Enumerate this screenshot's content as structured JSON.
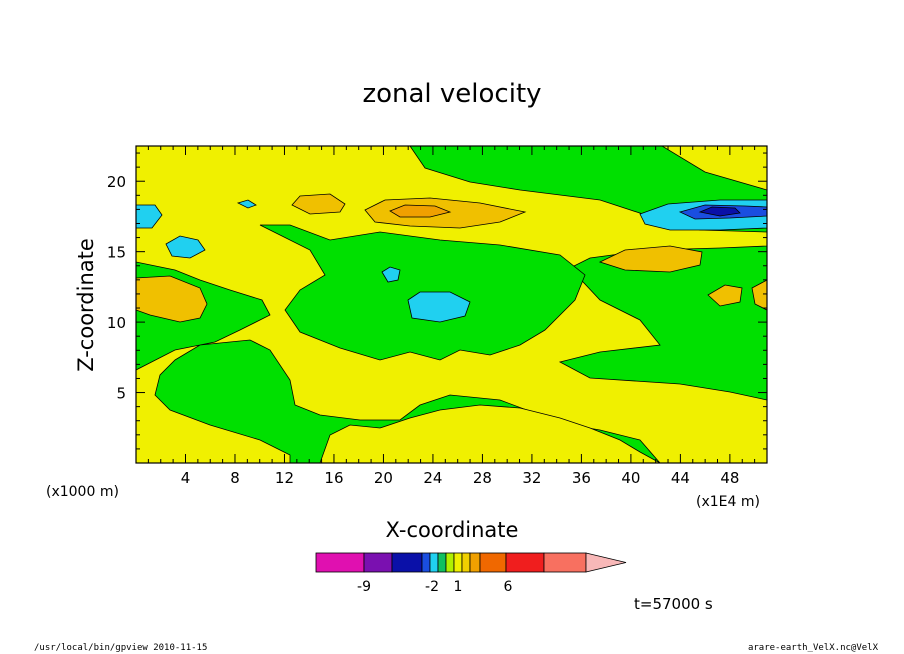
{
  "chart_data": {
    "type": "heatmap",
    "title": "zonal velocity",
    "xlabel": "X-coordinate",
    "ylabel": "Z-coordinate",
    "x_ticks": [
      "4",
      "8",
      "12",
      "16",
      "20",
      "24",
      "28",
      "32",
      "36",
      "40",
      "44",
      "48"
    ],
    "y_ticks": [
      "5",
      "10",
      "15",
      "20"
    ],
    "xlim": [
      0,
      51
    ],
    "ylim": [
      0,
      22.5
    ],
    "x_unit_left": "(x1000 m)",
    "x_unit_right": "(x1E4 m)",
    "colorbar": {
      "labels": [
        "-9",
        "-2",
        "1",
        "6"
      ],
      "colors": [
        "#e010b0",
        "#7a10b0",
        "#0a10a8",
        "#1a4ee0",
        "#20d0f0",
        "#10c060",
        "#b0f000",
        "#f0f000",
        "#f0d000",
        "#f0a000",
        "#f06800",
        "#f01e1e",
        "#f87060",
        "#f8b8b8"
      ]
    },
    "fields": {
      "background": "#00e000",
      "legend": [
        {
          "label": "-9",
          "color": "#e010b0"
        },
        {
          "label": "-2",
          "color": "#0a10a8"
        },
        {
          "label": "1",
          "color": "#f0f000"
        },
        {
          "label": "6",
          "color": "#f06800"
        }
      ]
    },
    "time_label": "t=57000 s"
  },
  "footer": {
    "left": "/usr/local/bin/gpview  2010-11-15",
    "right": "arare-earth_VelX.nc@VelX"
  }
}
